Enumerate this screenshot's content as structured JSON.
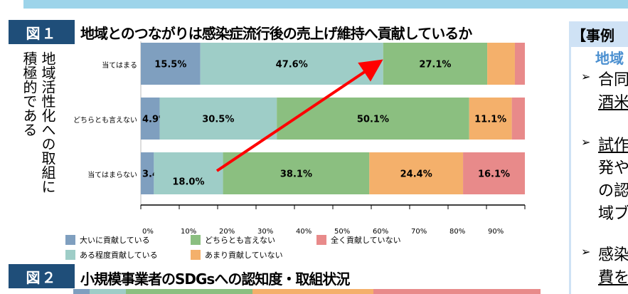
{
  "fig1": {
    "label": "図１",
    "title": "地域とのつながりは感染症流行後の売上げ維持へ貢献しているか",
    "y_group_label_line1": "地域活性化への取組に",
    "y_group_label_line2": "積極的である"
  },
  "fig2": {
    "label": "図２",
    "title": "小規模事業者のSDGsへの認知度・取組状況",
    "partial_bar": [
      3.5,
      7.8,
      27.1,
      25.9,
      35.7
    ]
  },
  "right_panel": {
    "header": "【事例",
    "subtitle": "地域",
    "bullet_icon": "arrowhead-bullet",
    "lines": [
      "合同",
      "酒米",
      "試作",
      "発や",
      "の認",
      "域ブ",
      "感染",
      "費を"
    ]
  },
  "chart_data": {
    "type": "bar",
    "orientation": "horizontal",
    "stacked": true,
    "categories": [
      "当てはまる",
      "どちらとも言えない",
      "当てはまらない"
    ],
    "xlim": [
      0,
      100
    ],
    "x_ticks": [
      "0%",
      "10%",
      "20%",
      "30%",
      "40%",
      "50%",
      "60%",
      "70%",
      "80%",
      "90%"
    ],
    "legend_position": "bottom",
    "series": [
      {
        "name": "大いに貢献している",
        "color": "#7f9fbf",
        "values": [
          15.5,
          4.9,
          3.4
        ],
        "labels": [
          "15.5%",
          "4.9%",
          "3.4%"
        ]
      },
      {
        "name": "ある程度貢献している",
        "color": "#9ecdc7",
        "values": [
          47.6,
          30.5,
          18.0
        ],
        "labels": [
          "47.6%",
          "30.5%",
          "18.0%"
        ]
      },
      {
        "name": "どちらとも言えない",
        "color": "#8bbf80",
        "values": [
          27.1,
          50.1,
          38.1
        ],
        "labels": [
          "27.1%",
          "50.1%",
          "38.1%"
        ]
      },
      {
        "name": "あまり貢献していない",
        "color": "#f4b06b",
        "values": [
          7.2,
          11.1,
          24.4
        ],
        "labels": [
          "",
          "11.1%",
          "24.4%"
        ]
      },
      {
        "name": "全く貢献していない",
        "color": "#e88a8a",
        "values": [
          2.6,
          3.4,
          16.1
        ],
        "labels": [
          "",
          "",
          "16.1%"
        ]
      }
    ],
    "annotation": "red-arrow"
  }
}
